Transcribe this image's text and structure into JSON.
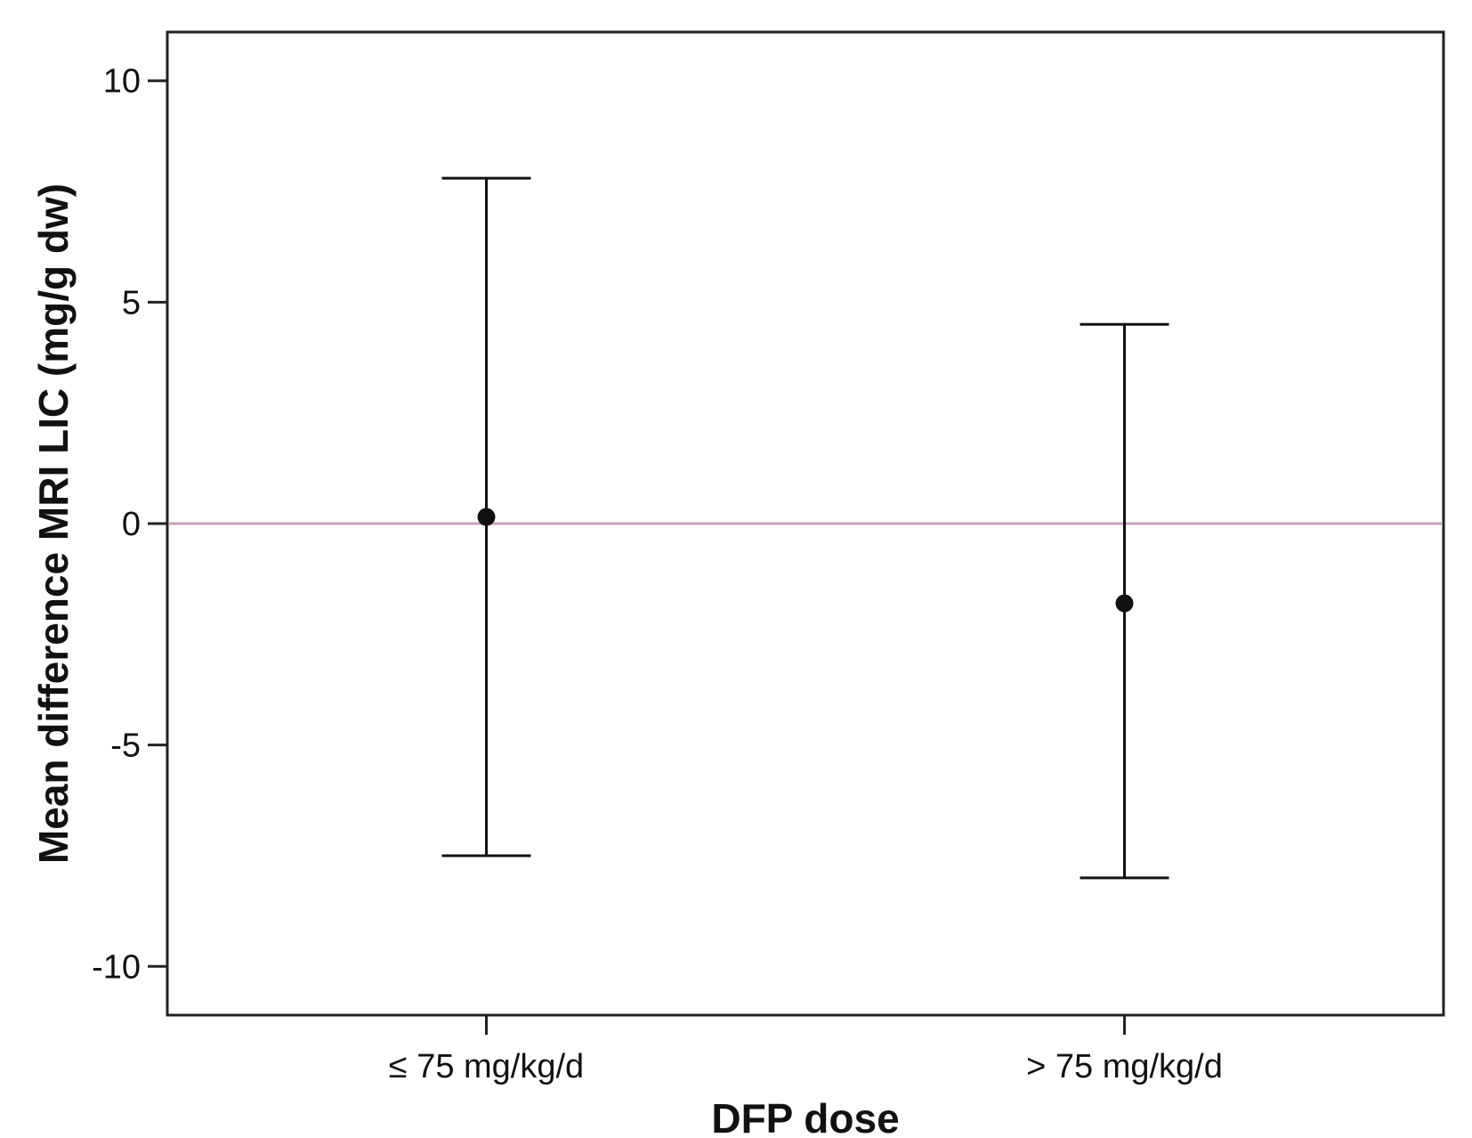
{
  "chart_data": {
    "type": "errorbar",
    "title": "",
    "xlabel": "DFP dose",
    "ylabel": "Mean difference MRI LIC (mg/g dw)",
    "categories": [
      "≤ 75 mg/kg/d",
      "> 75 mg/kg/d"
    ],
    "series": [
      {
        "mean": [
          0.15,
          -1.8
        ],
        "lower": [
          -7.5,
          -8.0
        ],
        "upper": [
          7.8,
          4.5
        ]
      }
    ],
    "ylim": [
      -11.1,
      11.1
    ],
    "yticks": [
      -10,
      -5,
      0,
      5,
      10
    ],
    "ytick_labels": [
      "-10",
      "-5",
      "0",
      "5",
      "10"
    ],
    "reference_line": {
      "y": 0,
      "color": "#c9a0bd"
    },
    "grid": false,
    "legend": "none",
    "colors": {
      "marks": "#111111",
      "frame": "#222222",
      "reference": "#c9a0bd"
    }
  }
}
